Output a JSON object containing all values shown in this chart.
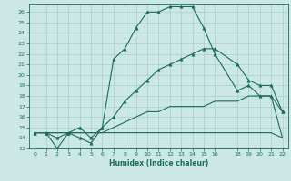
{
  "title": "",
  "xlabel": "Humidex (Indice chaleur)",
  "background_color": "#cce8e4",
  "line_color": "#1a6b5a",
  "grid_color": "#a0c8c4",
  "xlim": [
    -0.5,
    22.5
  ],
  "ylim": [
    13,
    26.8
  ],
  "xticks": [
    0,
    1,
    2,
    3,
    4,
    5,
    6,
    7,
    8,
    9,
    10,
    11,
    12,
    13,
    14,
    15,
    16,
    18,
    19,
    20,
    21,
    22
  ],
  "yticks": [
    13,
    14,
    15,
    16,
    17,
    18,
    19,
    20,
    21,
    22,
    23,
    24,
    25,
    26
  ],
  "lines": [
    {
      "x": [
        0,
        1,
        2,
        3,
        4,
        5,
        6,
        7,
        8,
        9,
        10,
        11,
        12,
        13,
        14,
        15,
        16,
        18,
        19,
        20,
        21,
        22
      ],
      "y": [
        14.5,
        14.5,
        14.5,
        14.5,
        14.5,
        14.5,
        14.5,
        14.5,
        14.5,
        14.5,
        14.5,
        14.5,
        14.5,
        14.5,
        14.5,
        14.5,
        14.5,
        14.5,
        14.5,
        14.5,
        14.5,
        14.0
      ],
      "marker": false,
      "linewidth": 0.8
    },
    {
      "x": [
        0,
        1,
        2,
        3,
        4,
        5,
        6,
        7,
        8,
        9,
        10,
        11,
        12,
        13,
        14,
        15,
        16,
        18,
        19,
        20,
        21,
        22
      ],
      "y": [
        14.5,
        14.5,
        14.5,
        14.5,
        14.5,
        14.5,
        14.5,
        15.0,
        15.5,
        16.0,
        16.5,
        16.5,
        17.0,
        17.0,
        17.0,
        17.0,
        17.5,
        17.5,
        18.0,
        18.0,
        18.0,
        14.0
      ],
      "marker": false,
      "linewidth": 0.8
    },
    {
      "x": [
        0,
        1,
        2,
        3,
        4,
        5,
        6,
        7,
        8,
        9,
        10,
        11,
        12,
        13,
        14,
        15,
        16,
        18,
        19,
        20,
        21,
        22
      ],
      "y": [
        14.5,
        14.5,
        13.0,
        14.5,
        14.0,
        13.5,
        15.0,
        16.0,
        17.5,
        18.5,
        19.5,
        20.5,
        21.0,
        21.5,
        22.0,
        22.5,
        22.5,
        21.0,
        19.5,
        19.0,
        19.0,
        16.5
      ],
      "marker": true,
      "linewidth": 0.8
    },
    {
      "x": [
        0,
        1,
        2,
        3,
        4,
        5,
        6,
        7,
        8,
        9,
        10,
        11,
        12,
        13,
        14,
        15,
        16,
        18,
        19,
        20,
        21,
        22
      ],
      "y": [
        14.5,
        14.5,
        14.0,
        14.5,
        15.0,
        14.0,
        15.0,
        21.5,
        22.5,
        24.5,
        26.0,
        26.0,
        26.5,
        26.5,
        26.5,
        24.5,
        22.0,
        18.5,
        19.0,
        18.0,
        18.0,
        16.5
      ],
      "marker": true,
      "linewidth": 0.8
    }
  ]
}
